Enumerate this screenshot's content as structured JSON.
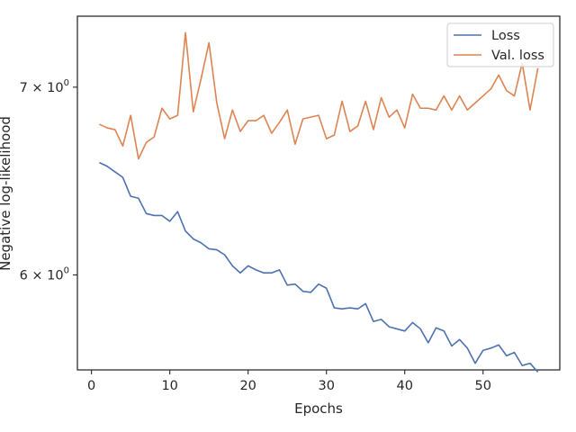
{
  "chart_data": {
    "type": "line",
    "title": "",
    "xlabel": "Epochs",
    "ylabel": "Negative log-likelihood",
    "yscale": "log",
    "xlim": [
      -1.8,
      59.8
    ],
    "ylim": [
      5.55,
      7.42
    ],
    "x_ticks": [
      0,
      10,
      20,
      30,
      40,
      50
    ],
    "x_tick_labels": [
      "0",
      "10",
      "20",
      "30",
      "40",
      "50"
    ],
    "y_ticks": [
      6,
      7
    ],
    "y_tick_labels": [
      "6 × 10",
      "7 × 10"
    ],
    "y_tick_exponent": "0",
    "grid": false,
    "legend_position": "top-right",
    "colors": {
      "loss": "#4c72b0",
      "val_loss": "#dd8452",
      "axis": "#262626"
    },
    "series": [
      {
        "name": "Loss",
        "x": [
          1,
          2,
          3,
          4,
          5,
          6,
          7,
          8,
          9,
          10,
          11,
          12,
          13,
          14,
          15,
          16,
          17,
          18,
          19,
          20,
          21,
          22,
          23,
          24,
          25,
          26,
          27,
          28,
          29,
          30,
          31,
          32,
          33,
          34,
          35,
          36,
          37,
          38,
          39,
          40,
          41,
          42,
          43,
          44,
          45,
          46,
          47,
          48,
          49,
          50,
          51,
          52,
          53,
          54,
          55,
          56,
          57
        ],
        "values": [
          6.58,
          6.56,
          6.53,
          6.5,
          6.4,
          6.39,
          6.31,
          6.3,
          6.3,
          6.27,
          6.32,
          6.22,
          6.18,
          6.16,
          6.13,
          6.125,
          6.1,
          6.045,
          6.01,
          6.045,
          6.025,
          6.01,
          6.01,
          6.025,
          5.95,
          5.955,
          5.92,
          5.915,
          5.955,
          5.935,
          5.84,
          5.835,
          5.84,
          5.835,
          5.86,
          5.775,
          5.785,
          5.75,
          5.74,
          5.73,
          5.77,
          5.74,
          5.675,
          5.745,
          5.73,
          5.66,
          5.69,
          5.65,
          5.58,
          5.64,
          5.65,
          5.665,
          5.615,
          5.63,
          5.57,
          5.58,
          5.54
        ]
      },
      {
        "name": "Val. loss",
        "x": [
          1,
          2,
          3,
          4,
          5,
          6,
          7,
          8,
          9,
          10,
          11,
          12,
          13,
          14,
          15,
          16,
          17,
          18,
          19,
          20,
          21,
          22,
          23,
          24,
          25,
          26,
          27,
          28,
          29,
          30,
          31,
          32,
          33,
          34,
          35,
          36,
          37,
          38,
          39,
          40,
          41,
          42,
          43,
          44,
          45,
          46,
          47,
          48,
          49,
          50,
          51,
          52,
          53,
          54,
          55,
          56,
          57
        ],
        "values": [
          6.79,
          6.77,
          6.76,
          6.67,
          6.84,
          6.6,
          6.69,
          6.72,
          6.88,
          6.82,
          6.84,
          7.32,
          6.86,
          7.05,
          7.26,
          6.91,
          6.71,
          6.87,
          6.75,
          6.81,
          6.81,
          6.84,
          6.74,
          6.8,
          6.87,
          6.68,
          6.82,
          6.83,
          6.84,
          6.71,
          6.73,
          6.92,
          6.75,
          6.78,
          6.92,
          6.76,
          6.94,
          6.83,
          6.87,
          6.77,
          6.96,
          6.88,
          6.88,
          6.87,
          6.95,
          6.87,
          6.95,
          6.87,
          6.91,
          6.95,
          6.99,
          7.07,
          6.98,
          6.95,
          7.14,
          6.87,
          7.11
        ]
      }
    ]
  }
}
